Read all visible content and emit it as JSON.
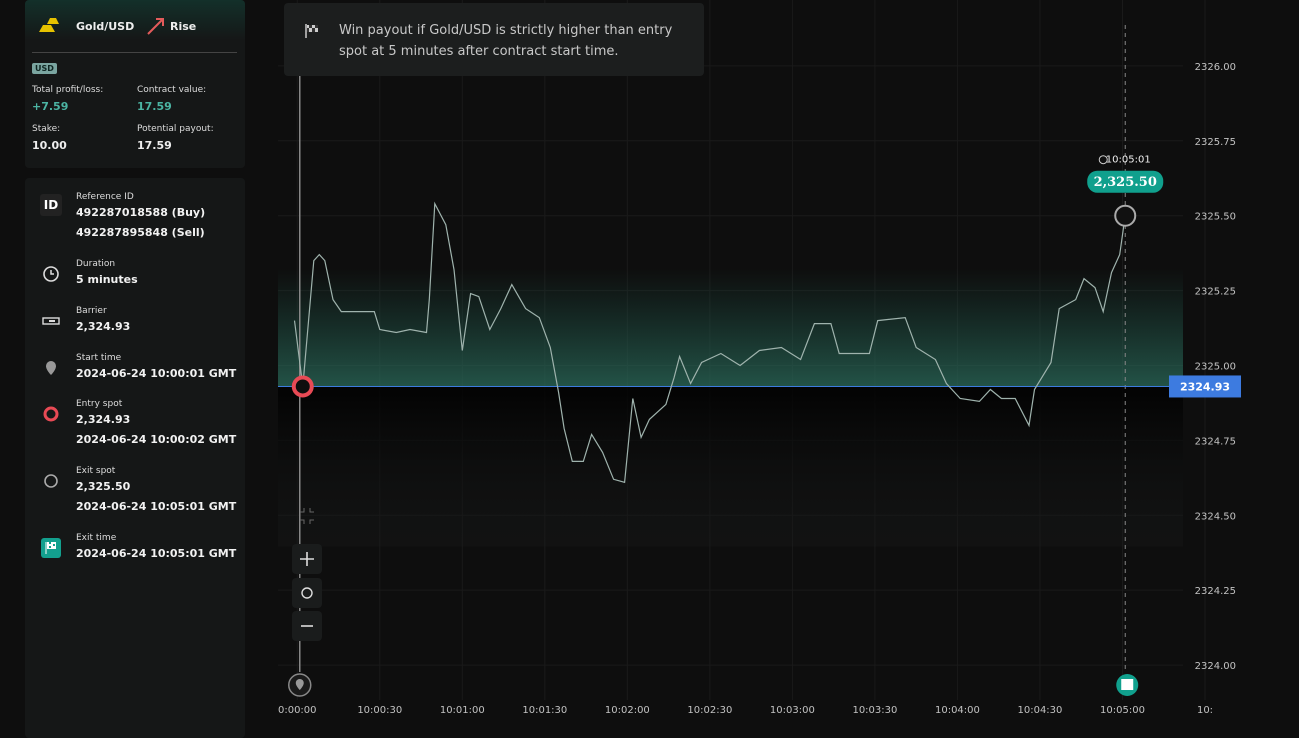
{
  "header": {
    "symbol": "Gold/USD",
    "trade_type": "Rise",
    "currency": "USD",
    "total_profit_loss_label": "Total profit/loss:",
    "total_profit_loss": "+7.59",
    "contract_value_label": "Contract value:",
    "contract_value": "17.59",
    "stake_label": "Stake:",
    "stake": "10.00",
    "potential_payout_label": "Potential payout:",
    "potential_payout": "17.59"
  },
  "details": [
    {
      "icon": "ID",
      "label": "Reference ID",
      "lines": [
        "492287018588 (Buy)",
        "492287895848 (Sell)"
      ]
    },
    {
      "label": "Duration",
      "lines": [
        "5 minutes"
      ]
    },
    {
      "label": "Barrier",
      "lines": [
        "2,324.93"
      ]
    },
    {
      "label": "Start time",
      "lines": [
        "2024-06-24 10:00:01 GMT"
      ]
    },
    {
      "label": "Entry spot",
      "lines": [
        "2,324.93",
        "2024-06-24 10:00:02 GMT"
      ]
    },
    {
      "label": "Exit spot",
      "lines": [
        "2,325.50",
        "2024-06-24 10:05:01 GMT"
      ]
    },
    {
      "label": "Exit time",
      "lines": [
        "2024-06-24 10:05:01 GMT"
      ]
    }
  ],
  "info": "Win payout if Gold/USD is strictly higher than entry spot at 5 minutes after contract start time.",
  "chart_data": {
    "type": "line",
    "x": [
      "09:59:59",
      "10:00:02",
      "10:00:06",
      "10:00:08",
      "10:00:10",
      "10:00:13",
      "10:00:16",
      "10:00:23",
      "10:00:28",
      "10:00:30",
      "10:00:36",
      "10:00:41",
      "10:00:47",
      "10:00:48",
      "10:00:50",
      "10:00:54",
      "10:00:57",
      "10:01:00",
      "10:01:03",
      "10:01:06",
      "10:01:10",
      "10:01:14",
      "10:01:18",
      "10:01:23",
      "10:01:28",
      "10:01:32",
      "10:01:35",
      "10:01:37",
      "10:01:40",
      "10:01:44",
      "10:01:47",
      "10:01:51",
      "10:01:55",
      "10:01:59",
      "10:02:02",
      "10:02:05",
      "10:02:08",
      "10:02:14",
      "10:02:17",
      "10:02:19",
      "10:02:23",
      "10:02:27",
      "10:02:34",
      "10:02:41",
      "10:02:48",
      "10:02:56",
      "10:03:03",
      "10:03:08",
      "10:03:14",
      "10:03:17",
      "10:03:28",
      "10:03:31",
      "10:03:41",
      "10:03:45",
      "10:03:52",
      "10:03:56",
      "10:04:01",
      "10:04:08",
      "10:04:12",
      "10:04:16",
      "10:04:21",
      "10:04:26",
      "10:04:28",
      "10:04:34",
      "10:04:37",
      "10:04:43",
      "10:04:46",
      "10:04:50",
      "10:04:53",
      "10:04:56",
      "10:04:59",
      "10:05:01"
    ],
    "series": [
      {
        "color": "#9fb3ad",
        "values": [
          2325.15,
          2324.93,
          2325.35,
          2325.37,
          2325.35,
          2325.22,
          2325.18,
          2325.18,
          2325.18,
          2325.12,
          2325.11,
          2325.12,
          2325.11,
          2325.22,
          2325.54,
          2325.47,
          2325.32,
          2325.05,
          2325.24,
          2325.23,
          2325.12,
          2325.19,
          2325.27,
          2325.19,
          2325.16,
          2325.06,
          2324.91,
          2324.79,
          2324.68,
          2324.68,
          2324.77,
          2324.71,
          2324.62,
          2324.61,
          2324.89,
          2324.76,
          2324.82,
          2324.87,
          2324.96,
          2325.03,
          2324.94,
          2325.01,
          2325.04,
          2325.0,
          2325.05,
          2325.06,
          2325.02,
          2325.14,
          2325.14,
          2325.04,
          2325.04,
          2325.15,
          2325.16,
          2325.06,
          2325.02,
          2324.94,
          2324.89,
          2324.88,
          2324.92,
          2324.89,
          2324.89,
          2324.8,
          2324.92,
          2325.01,
          2325.19,
          2325.22,
          2325.29,
          2325.26,
          2325.18,
          2325.31,
          2325.37,
          2325.5
        ]
      }
    ],
    "xlim": [
      "09:59:53",
      "10:05:22"
    ],
    "xticks": [
      {
        "value": "10:00:00",
        "label": "0:00:00"
      },
      "10:00:30",
      "10:01:00",
      "10:01:30",
      "10:02:00",
      "10:02:30",
      "10:03:00",
      "10:03:30",
      "10:04:00",
      "10:04:30",
      "10:05:00",
      {
        "value": "10:05:30",
        "label": "10:"
      }
    ],
    "ylim": [
      2323.8,
      2326.22
    ],
    "yticks": [
      {
        "value": 2324,
        "label": "2324.00"
      },
      {
        "value": 2324.25,
        "label": "2324.25"
      },
      {
        "value": 2324.5,
        "label": "2324.50"
      },
      {
        "value": 2324.75,
        "label": "2324.75"
      },
      {
        "value": 2325,
        "label": "2325.00"
      },
      {
        "value": 2325.25,
        "label": "2325.25"
      },
      {
        "value": 2325.5,
        "label": "2325.50"
      },
      {
        "value": 2325.75,
        "label": "2325.75"
      },
      {
        "value": 2326,
        "label": "2326.00"
      }
    ],
    "barrier": 2324.93,
    "entry": {
      "x": "10:00:02",
      "value": 2324.93
    },
    "exit": {
      "x": "10:05:01",
      "value": 2325.5,
      "label": "2,325.50"
    },
    "grid": true
  }
}
